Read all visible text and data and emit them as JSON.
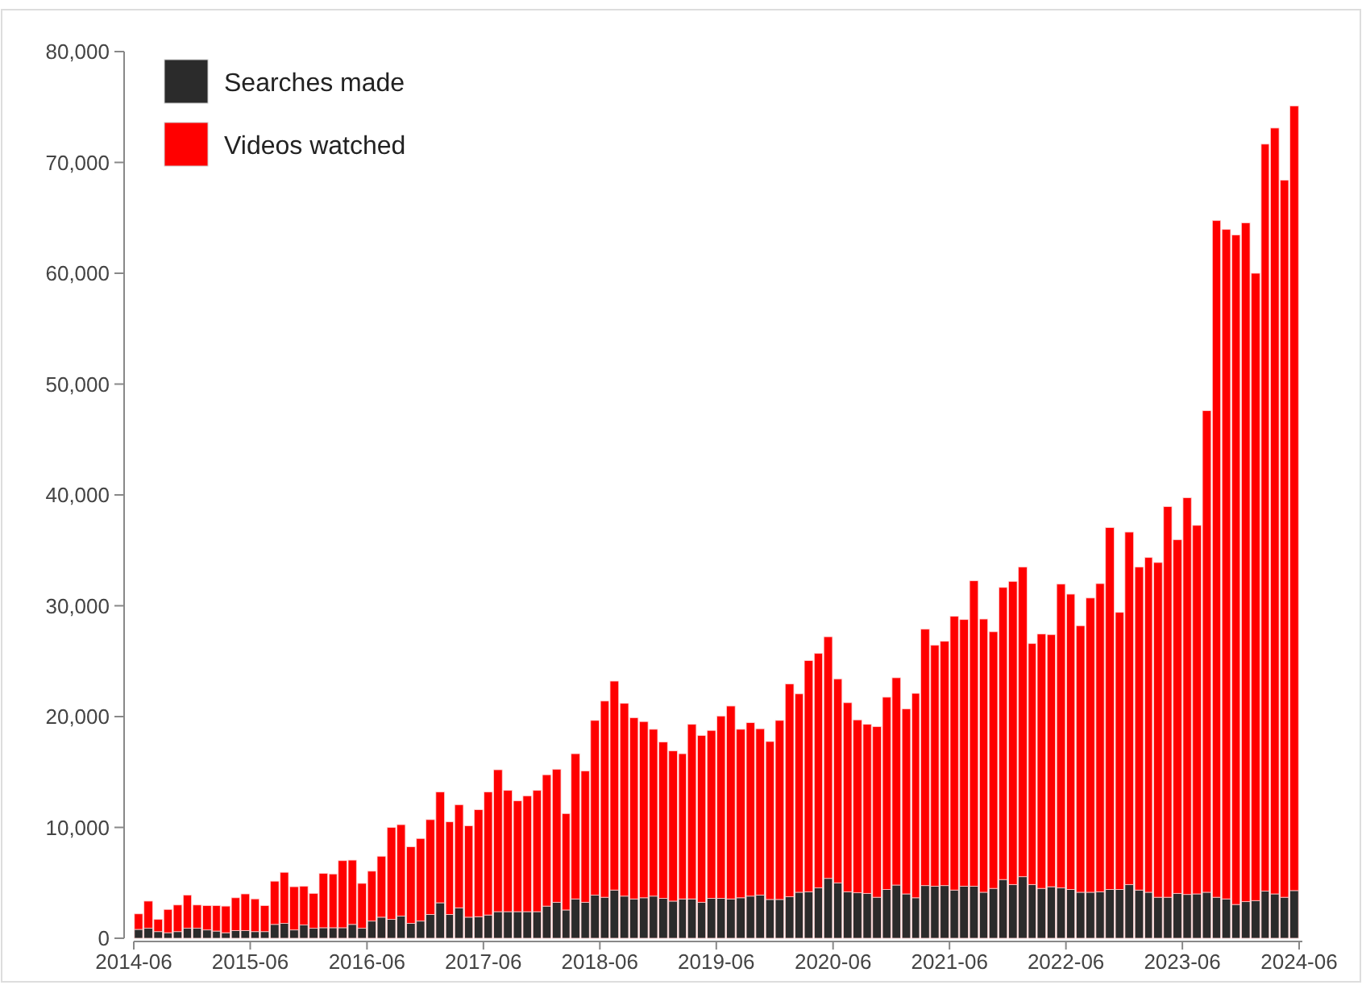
{
  "chart_data": {
    "type": "bar",
    "stacked": true,
    "legend": "top left",
    "grid": false,
    "x": [
      "2014-06",
      "2014-07",
      "2014-08",
      "2014-09",
      "2014-10",
      "2014-11",
      "2014-12",
      "2015-01",
      "2015-02",
      "2015-03",
      "2015-04",
      "2015-05",
      "2015-06",
      "2015-07",
      "2015-08",
      "2015-09",
      "2015-10",
      "2015-11",
      "2015-12",
      "2016-01",
      "2016-02",
      "2016-03",
      "2016-04",
      "2016-05",
      "2016-06",
      "2016-07",
      "2016-08",
      "2016-09",
      "2016-10",
      "2016-11",
      "2016-12",
      "2017-01",
      "2017-02",
      "2017-03",
      "2017-04",
      "2017-05",
      "2017-06",
      "2017-07",
      "2017-08",
      "2017-09",
      "2017-10",
      "2017-11",
      "2017-12",
      "2018-01",
      "2018-02",
      "2018-03",
      "2018-04",
      "2018-05",
      "2018-06",
      "2018-07",
      "2018-08",
      "2018-09",
      "2018-10",
      "2018-11",
      "2018-12",
      "2019-01",
      "2019-02",
      "2019-03",
      "2019-04",
      "2019-05",
      "2019-06",
      "2019-07",
      "2019-08",
      "2019-09",
      "2019-10",
      "2019-11",
      "2019-12",
      "2020-01",
      "2020-02",
      "2020-03",
      "2020-04",
      "2020-05",
      "2020-06",
      "2020-07",
      "2020-08",
      "2020-09",
      "2020-10",
      "2020-11",
      "2020-12",
      "2021-01",
      "2021-02",
      "2021-03",
      "2021-04",
      "2021-05",
      "2021-06",
      "2021-07",
      "2021-08",
      "2021-09",
      "2021-10",
      "2021-11",
      "2021-12",
      "2022-01",
      "2022-02",
      "2022-03",
      "2022-04",
      "2022-05",
      "2022-06",
      "2022-07",
      "2022-08",
      "2022-09",
      "2022-10",
      "2022-11",
      "2022-12",
      "2023-01",
      "2023-02",
      "2023-03",
      "2023-04",
      "2023-05",
      "2023-06",
      "2023-07",
      "2023-08",
      "2023-09",
      "2023-10",
      "2023-11",
      "2023-12",
      "2024-01",
      "2024-02",
      "2024-03",
      "2024-04",
      "2024-05"
    ],
    "series": [
      {
        "name": "Searches made",
        "color": "#2b2b2b",
        "values": [
          800,
          900,
          600,
          500,
          600,
          900,
          900,
          750,
          650,
          500,
          700,
          700,
          600,
          600,
          1250,
          1350,
          750,
          1200,
          900,
          950,
          950,
          950,
          1250,
          900,
          1550,
          1900,
          1700,
          2000,
          1350,
          1550,
          2150,
          3200,
          2150,
          2750,
          1900,
          1950,
          2100,
          2400,
          2400,
          2400,
          2400,
          2400,
          2900,
          3250,
          2550,
          3550,
          3250,
          3900,
          3700,
          4350,
          3800,
          3550,
          3650,
          3800,
          3600,
          3350,
          3550,
          3550,
          3250,
          3600,
          3600,
          3550,
          3650,
          3800,
          3900,
          3500,
          3500,
          3750,
          4150,
          4200,
          4550,
          5400,
          5000,
          4200,
          4100,
          4050,
          3700,
          4400,
          4800,
          4000,
          3650,
          4750,
          4700,
          4750,
          4350,
          4700,
          4700,
          4150,
          4500,
          5300,
          4850,
          5550,
          4850,
          4500,
          4650,
          4550,
          4400,
          4150,
          4150,
          4200,
          4400,
          4400,
          4850,
          4350,
          4150,
          3700,
          3700,
          4050,
          3950,
          4000,
          4150,
          3700,
          3550,
          3050,
          3300,
          3400,
          4250,
          4000,
          3700,
          4300
        ]
      },
      {
        "name": "Videos watched",
        "color": "#ff0000",
        "values": [
          1400,
          2450,
          1100,
          2100,
          2400,
          3000,
          2100,
          2200,
          2300,
          2400,
          2950,
          3300,
          2950,
          2350,
          3900,
          4600,
          3900,
          3500,
          3150,
          4900,
          4850,
          6050,
          5800,
          4050,
          4500,
          5500,
          8300,
          8250,
          6900,
          7450,
          8550,
          10000,
          8350,
          9300,
          8250,
          9650,
          11100,
          12800,
          10950,
          10000,
          10450,
          10950,
          11850,
          12000,
          8700,
          13100,
          11850,
          15750,
          17700,
          18850,
          17400,
          16350,
          15900,
          15050,
          14100,
          13550,
          13100,
          15750,
          15050,
          15150,
          16450,
          17400,
          15200,
          15650,
          15000,
          14250,
          16150,
          19200,
          17900,
          20850,
          21150,
          21800,
          18400,
          17050,
          15600,
          15250,
          15400,
          17350,
          18700,
          16700,
          18450,
          23150,
          21750,
          22050,
          24700,
          24050,
          27550,
          24650,
          23150,
          26350,
          27350,
          27950,
          21750,
          22950,
          22750,
          27400,
          26650,
          24050,
          26550,
          27800,
          32650,
          25000,
          31800,
          29150,
          30200,
          30200,
          35250,
          31900,
          35800,
          33250,
          43450,
          61050,
          60400,
          60400,
          61250,
          56600,
          67400,
          69100,
          64700,
          70800
        ]
      }
    ],
    "xlim": [
      "2014-06",
      "2024-06"
    ],
    "xticks": [
      "2014-06",
      "2015-06",
      "2016-06",
      "2017-06",
      "2018-06",
      "2019-06",
      "2020-06",
      "2021-06",
      "2022-06",
      "2023-06",
      "2024-06"
    ],
    "ylim": [
      0,
      80000
    ],
    "yticks": [
      0,
      {
        "value": 10000,
        "label": "10,000"
      },
      {
        "value": 20000,
        "label": "20,000"
      },
      {
        "value": 30000,
        "label": "30,000"
      },
      {
        "value": 40000,
        "label": "40,000"
      },
      {
        "value": 50000,
        "label": "50,000"
      },
      {
        "value": 60000,
        "label": "60,000"
      },
      {
        "value": 70000,
        "label": "70,000"
      },
      {
        "value": 80000,
        "label": "80,000"
      }
    ]
  }
}
